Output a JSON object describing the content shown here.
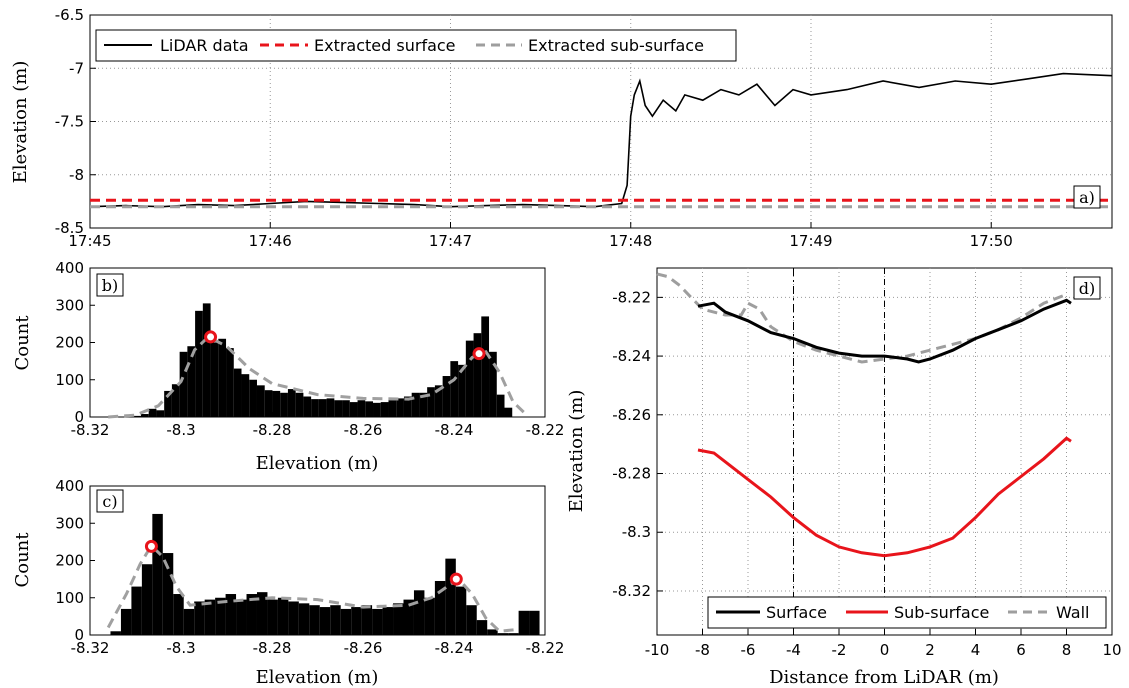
{
  "chart_data": [
    {
      "panel": "a)",
      "type": "line",
      "ylabel": "Elevation (m)",
      "ylim": [
        -8.5,
        -6.5
      ],
      "yticks": [
        "-6.5",
        "-7",
        "-7.5",
        "-8",
        "-8.5"
      ],
      "xticks": [
        "17:45",
        "17:46",
        "17:47",
        "17:48",
        "17:49",
        "17:50"
      ],
      "xlim_minutes": [
        0,
        5.67
      ],
      "grid": true,
      "legend": {
        "placement": "top-left",
        "entries": [
          "LiDAR data",
          "Extracted surface",
          "Extracted sub-surface"
        ]
      },
      "series": [
        {
          "name": "LiDAR data",
          "color": "#000000",
          "style": "solid",
          "minutes": [
            0,
            0.2,
            0.4,
            0.6,
            0.8,
            1.0,
            1.2,
            1.4,
            1.6,
            1.8,
            2.0,
            2.2,
            2.4,
            2.6,
            2.8,
            2.95,
            2.98,
            3.0,
            3.02,
            3.05,
            3.08,
            3.12,
            3.18,
            3.25,
            3.3,
            3.4,
            3.5,
            3.6,
            3.7,
            3.8,
            3.9,
            4.0,
            4.2,
            4.4,
            4.6,
            4.8,
            5.0,
            5.2,
            5.4,
            5.67
          ],
          "values": [
            -8.3,
            -8.29,
            -8.3,
            -8.28,
            -8.29,
            -8.27,
            -8.25,
            -8.26,
            -8.27,
            -8.28,
            -8.3,
            -8.29,
            -8.28,
            -8.29,
            -8.3,
            -8.27,
            -8.1,
            -7.45,
            -7.25,
            -7.12,
            -7.35,
            -7.45,
            -7.3,
            -7.4,
            -7.25,
            -7.3,
            -7.2,
            -7.25,
            -7.15,
            -7.35,
            -7.2,
            -7.25,
            -7.2,
            -7.12,
            -7.18,
            -7.12,
            -7.15,
            -7.1,
            -7.05,
            -7.07
          ]
        },
        {
          "name": "Extracted surface",
          "color": "#e8141b",
          "style": "dashed",
          "minutes": [
            0,
            5.67
          ],
          "values": [
            -8.24,
            -8.24
          ]
        },
        {
          "name": "Extracted sub-surface",
          "color": "#9e9e9e",
          "style": "dashed",
          "minutes": [
            0,
            5.67
          ],
          "values": [
            -8.3,
            -8.3
          ]
        }
      ]
    },
    {
      "panel": "b)",
      "type": "bar",
      "xlabel": "Elevation (m)",
      "ylabel": "Count",
      "xlim": [
        -8.32,
        -8.22
      ],
      "ylim": [
        0,
        400
      ],
      "xticks": [
        "-8.32",
        "-8.3",
        "-8.28",
        "-8.26",
        "-8.24",
        "-8.22"
      ],
      "yticks": [
        "0",
        "100",
        "200",
        "300",
        "400"
      ],
      "bin_width": 0.0017,
      "bins_left": [
        -8.3105,
        -8.3088,
        -8.3071,
        -8.3054,
        -8.3037,
        -8.302,
        -8.3003,
        -8.2986,
        -8.2969,
        -8.2952,
        -8.2935,
        -8.2918,
        -8.2901,
        -8.2884,
        -8.2867,
        -8.285,
        -8.2833,
        -8.2816,
        -8.2799,
        -8.2782,
        -8.2765,
        -8.2748,
        -8.2731,
        -8.2714,
        -8.2697,
        -8.268,
        -8.2663,
        -8.2646,
        -8.2629,
        -8.2612,
        -8.2595,
        -8.2578,
        -8.2561,
        -8.2544,
        -8.2527,
        -8.251,
        -8.2493,
        -8.2476,
        -8.2459,
        -8.2442,
        -8.2425,
        -8.2408,
        -8.2391,
        -8.2374,
        -8.2357,
        -8.234,
        -8.2323,
        -8.2306,
        -8.2289
      ],
      "counts": [
        3,
        8,
        22,
        18,
        70,
        88,
        175,
        190,
        285,
        305,
        200,
        210,
        185,
        130,
        115,
        100,
        85,
        72,
        70,
        65,
        75,
        65,
        55,
        48,
        48,
        50,
        45,
        45,
        40,
        45,
        42,
        38,
        40,
        45,
        50,
        55,
        65,
        65,
        80,
        85,
        110,
        150,
        140,
        205,
        225,
        270,
        175,
        60,
        25
      ],
      "fit_x": [
        -8.316,
        -8.31,
        -8.305,
        -8.3,
        -8.297,
        -8.294,
        -8.29,
        -8.285,
        -8.28,
        -8.27,
        -8.26,
        -8.25,
        -8.245,
        -8.24,
        -8.236,
        -8.233,
        -8.23,
        -8.227,
        -8.224
      ],
      "fit_y": [
        0,
        5,
        30,
        95,
        180,
        215,
        190,
        130,
        90,
        60,
        50,
        48,
        60,
        100,
        160,
        175,
        120,
        40,
        5
      ],
      "peaks": [
        {
          "x": -8.2935,
          "y": 215
        },
        {
          "x": -8.2345,
          "y": 170
        }
      ]
    },
    {
      "panel": "c)",
      "type": "bar",
      "xlabel": "Elevation (m)",
      "ylabel": "Count",
      "xlim": [
        -8.32,
        -8.22
      ],
      "ylim": [
        0,
        400
      ],
      "xticks": [
        "-8.32",
        "-8.3",
        "-8.28",
        "-8.26",
        "-8.24",
        "-8.22"
      ],
      "yticks": [
        "0",
        "100",
        "200",
        "300",
        "400"
      ],
      "bin_width": 0.0023,
      "bins_left": [
        -8.3155,
        -8.3132,
        -8.3109,
        -8.3086,
        -8.3063,
        -8.304,
        -8.3017,
        -8.2994,
        -8.2971,
        -8.2948,
        -8.2925,
        -8.2902,
        -8.2879,
        -8.2856,
        -8.2833,
        -8.281,
        -8.2787,
        -8.2764,
        -8.2741,
        -8.2718,
        -8.2695,
        -8.2672,
        -8.2649,
        -8.2626,
        -8.2603,
        -8.258,
        -8.2557,
        -8.2534,
        -8.2511,
        -8.2488,
        -8.2465,
        -8.2442,
        -8.2419,
        -8.2396,
        -8.2373,
        -8.235,
        -8.2327,
        -8.2304,
        -8.2281,
        -8.2258,
        -8.2235
      ],
      "counts": [
        10,
        70,
        130,
        190,
        325,
        220,
        110,
        70,
        90,
        95,
        100,
        110,
        95,
        110,
        115,
        95,
        100,
        90,
        85,
        80,
        75,
        80,
        70,
        75,
        80,
        70,
        75,
        85,
        95,
        120,
        100,
        145,
        205,
        130,
        80,
        40,
        15,
        5,
        5,
        65,
        65
      ],
      "fit_x": [
        -8.316,
        -8.312,
        -8.309,
        -8.3065,
        -8.304,
        -8.301,
        -8.298,
        -8.29,
        -8.28,
        -8.27,
        -8.26,
        -8.25,
        -8.245,
        -8.2415,
        -8.239,
        -8.236,
        -8.233,
        -8.23,
        -8.226
      ],
      "fit_y": [
        20,
        110,
        190,
        240,
        210,
        130,
        80,
        90,
        100,
        95,
        75,
        80,
        100,
        130,
        150,
        110,
        45,
        10,
        15
      ],
      "peaks": [
        {
          "x": -8.3065,
          "y": 238
        },
        {
          "x": -8.2395,
          "y": 150
        }
      ]
    },
    {
      "panel": "d)",
      "type": "line",
      "xlabel": "Distance from LiDAR (m)",
      "ylabel": "Elevation (m)",
      "xlim": [
        -10,
        10
      ],
      "ylim": [
        -8.335,
        -8.21
      ],
      "xticks": [
        "-10",
        "-8",
        "-6",
        "-4",
        "-2",
        "0",
        "2",
        "4",
        "6",
        "8",
        "10"
      ],
      "yticks": [
        "-8.22",
        "-8.24",
        "-8.26",
        "-8.28",
        "-8.3",
        "-8.32"
      ],
      "grid": true,
      "vlines": [
        {
          "x": -4,
          "style": "dashdot"
        },
        {
          "x": 0,
          "style": "dashed"
        }
      ],
      "legend": {
        "placement": "bottom",
        "entries": [
          "Surface",
          "Sub-surface",
          "Wall"
        ]
      },
      "series": [
        {
          "name": "Surface",
          "color": "#000000",
          "style": "solid",
          "x": [
            -8.2,
            -7.5,
            -7,
            -6,
            -5,
            -4,
            -3,
            -2,
            -1,
            0,
            1,
            1.5,
            2,
            3,
            4,
            5,
            6,
            7,
            8,
            8.2
          ],
          "y": [
            -8.223,
            -8.222,
            -8.225,
            -8.228,
            -8.232,
            -8.234,
            -8.237,
            -8.239,
            -8.24,
            -8.24,
            -8.241,
            -8.242,
            -8.241,
            -8.238,
            -8.234,
            -8.231,
            -8.228,
            -8.224,
            -8.221,
            -8.222
          ]
        },
        {
          "name": "Sub-surface",
          "color": "#e8141b",
          "style": "solid",
          "x": [
            -8.2,
            -7.5,
            -7,
            -6,
            -5,
            -4,
            -3,
            -2,
            -1,
            0,
            1,
            2,
            3,
            4,
            5,
            6,
            7,
            8,
            8.2
          ],
          "y": [
            -8.272,
            -8.273,
            -8.276,
            -8.282,
            -8.288,
            -8.295,
            -8.301,
            -8.305,
            -8.307,
            -8.308,
            -8.307,
            -8.305,
            -8.302,
            -8.295,
            -8.287,
            -8.281,
            -8.275,
            -8.268,
            -8.269
          ]
        },
        {
          "name": "Wall",
          "color": "#9e9e9e",
          "style": "dashed",
          "x": [
            -10,
            -9.5,
            -9,
            -8.5,
            -8,
            -7,
            -6.3,
            -6,
            -5.5,
            -5,
            -4,
            -3,
            -2,
            -1,
            0,
            1,
            2,
            3,
            4,
            5,
            6,
            7,
            8
          ],
          "y": [
            -8.212,
            -8.213,
            -8.216,
            -8.22,
            -8.224,
            -8.226,
            -8.226,
            -8.222,
            -8.224,
            -8.23,
            -8.235,
            -8.238,
            -8.24,
            -8.242,
            -8.241,
            -8.24,
            -8.238,
            -8.236,
            -8.234,
            -8.231,
            -8.227,
            -8.222,
            -8.219
          ]
        }
      ]
    }
  ]
}
